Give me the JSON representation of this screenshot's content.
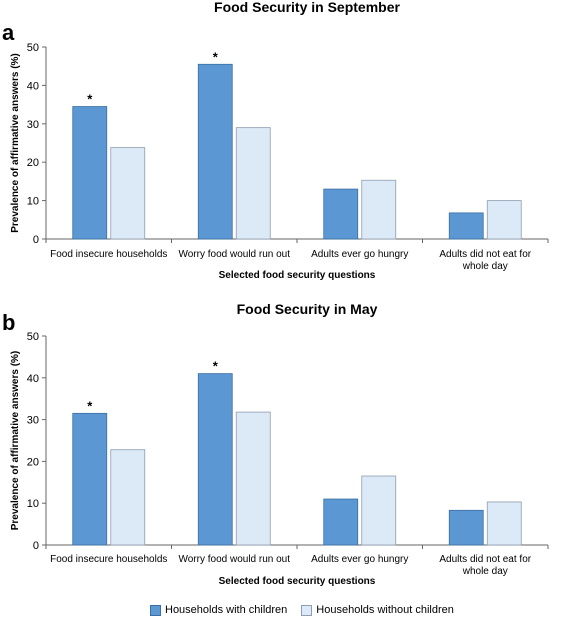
{
  "colors": {
    "with_children": "#5b97d3",
    "with_children_stroke": "#3a6fa3",
    "without_children": "#dce9f7",
    "without_children_stroke": "#8e9db0",
    "axis": "#666666"
  },
  "chart_data": [
    {
      "type": "bar",
      "panel_label": "a",
      "title": "Food Security in September",
      "ylabel": "Prevalence of affirmative answers (%)",
      "xlabel": "Selected food security questions",
      "ylim": [
        0,
        50
      ],
      "yticks": [
        0,
        10,
        20,
        30,
        40,
        50
      ],
      "categories": [
        [
          "Food insecure households"
        ],
        [
          "Worry food would run out"
        ],
        [
          "Adults ever go hungry"
        ],
        [
          "Adults did not eat for",
          "whole day"
        ]
      ],
      "series": [
        {
          "name": "Households with children",
          "values": [
            34.5,
            45.5,
            13,
            6.8
          ]
        },
        {
          "name": "Households without children",
          "values": [
            23.8,
            29,
            15.3,
            10
          ]
        }
      ],
      "significance": {
        "series": 0,
        "categories": [
          0,
          1
        ],
        "marker": "*"
      }
    },
    {
      "type": "bar",
      "panel_label": "b",
      "title": "Food Security in May",
      "ylabel": "Prevalence of affirmative answers (%)",
      "xlabel": "Selected food security questions",
      "ylim": [
        0,
        50
      ],
      "yticks": [
        0,
        10,
        20,
        30,
        40,
        50
      ],
      "categories": [
        [
          "Food insecure households"
        ],
        [
          "Worry food would run out"
        ],
        [
          "Adults ever go hungry"
        ],
        [
          "Adults did not eat for",
          "whole day"
        ]
      ],
      "series": [
        {
          "name": "Households with children",
          "values": [
            31.5,
            41,
            11,
            8.3
          ]
        },
        {
          "name": "Households without children",
          "values": [
            22.8,
            31.8,
            16.5,
            10.3
          ]
        }
      ],
      "significance": {
        "series": 0,
        "categories": [
          0,
          1
        ],
        "marker": "*"
      }
    }
  ],
  "legend": {
    "items": [
      {
        "label": "Households with children"
      },
      {
        "label": "Households without children"
      }
    ]
  }
}
